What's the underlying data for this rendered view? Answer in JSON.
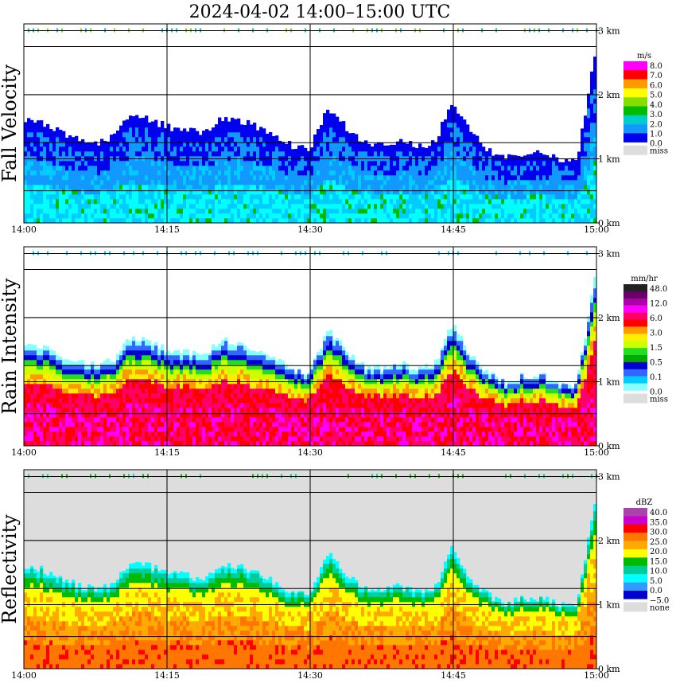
{
  "figure": {
    "title": "2024-04-02   14:00–15:00 UTC"
  },
  "chart_data": [
    {
      "type": "heatmap",
      "name": "Fall Velocity",
      "ylabel": "Fall Velocity",
      "xlim_minutes": [
        "14:00",
        "15:00"
      ],
      "x_ticks": [
        "14:00",
        "14:15",
        "14:30",
        "14:45",
        "15:00"
      ],
      "height_ticks": [
        "0 km",
        "1 km",
        "2 km",
        "3 km"
      ],
      "ylim_km": [
        0,
        3.2
      ],
      "grid": true,
      "colorbar": {
        "unit": "m/s",
        "labels": [
          "8.0",
          "7.0",
          "6.0",
          "5.0",
          "4.0",
          "3.0",
          "2.0",
          "1.0",
          "0.0",
          "miss"
        ],
        "colors": [
          "#ff00ff",
          "#ff0000",
          "#ff9900",
          "#ffff00",
          "#88dd00",
          "#00bb00",
          "#00cccc",
          "#1199ff",
          "#0000ee"
        ],
        "miss_color": "#dddddd"
      },
      "data_summary": {
        "echo_top_km": [
          1.6,
          1.55,
          1.4,
          1.3,
          1.25,
          1.35,
          1.7,
          1.6,
          1.5,
          1.45,
          1.4,
          1.65,
          1.6,
          1.5,
          1.35,
          1.2,
          1.15,
          1.8,
          1.5,
          1.25,
          1.2,
          1.3,
          1.2,
          1.25,
          1.9,
          1.4,
          1.15,
          1.0,
          1.1,
          1.1,
          1.0,
          0.95,
          2.6
        ],
        "typical_values": "0.0–3.0 m/s, higher near the ground"
      }
    },
    {
      "type": "heatmap",
      "name": "Rain Intensity",
      "ylabel": "Rain Intensity",
      "x_ticks": [
        "14:00",
        "14:15",
        "14:30",
        "14:45",
        "15:00"
      ],
      "height_ticks": [
        "0 km",
        "1 km",
        "2 km",
        "3 km"
      ],
      "ylim_km": [
        0,
        3.2
      ],
      "grid": true,
      "colorbar": {
        "unit": "mm/hr",
        "labels": [
          "48.0",
          "12.0",
          "6.0",
          "3.0",
          "1.5",
          "0.5",
          "0.1",
          "0.0",
          "miss"
        ],
        "colors": [
          "#222222",
          "#660066",
          "#aa00aa",
          "#ff00ff",
          "#ff0066",
          "#ff0000",
          "#ff9900",
          "#ffee00",
          "#ccff00",
          "#22dd22",
          "#00aa00",
          "#0000cc",
          "#3366ff",
          "#00ccff",
          "#88ffff"
        ],
        "miss_color": "#dddddd"
      },
      "data_summary": {
        "echo_top_km": [
          1.6,
          1.55,
          1.4,
          1.3,
          1.25,
          1.35,
          1.7,
          1.6,
          1.5,
          1.45,
          1.4,
          1.65,
          1.6,
          1.5,
          1.35,
          1.2,
          1.15,
          1.8,
          1.5,
          1.25,
          1.2,
          1.3,
          1.2,
          1.25,
          1.9,
          1.4,
          1.15,
          1.0,
          1.1,
          1.1,
          1.0,
          0.95,
          2.6
        ],
        "typical_values": "6.0–12.0 mm/hr below 1 km"
      }
    },
    {
      "type": "heatmap",
      "name": "Reflectivity",
      "ylabel": "Reflectivity",
      "x_ticks": [
        "14:00",
        "14:15",
        "14:30",
        "14:45",
        "15:00"
      ],
      "height_ticks": [
        "0 km",
        "1 km",
        "2 km",
        "3 km"
      ],
      "ylim_km": [
        0,
        3.2
      ],
      "grid": true,
      "colorbar": {
        "unit": "dBZ",
        "labels": [
          "40.0",
          "35.0",
          "30.0",
          "25.0",
          "20.0",
          "15.0",
          "10.0",
          "5.0",
          "0.0",
          "−5.0",
          "none"
        ],
        "colors": [
          "#aa44aa",
          "#cc00cc",
          "#ff0000",
          "#ff7700",
          "#ffaa00",
          "#ffff00",
          "#00bb00",
          "#00cc99",
          "#00ffff",
          "#3399ff",
          "#0000cc"
        ],
        "miss_color": "#dddddd"
      },
      "data_summary": {
        "echo_top_km": [
          1.6,
          1.55,
          1.4,
          1.3,
          1.25,
          1.35,
          1.7,
          1.6,
          1.5,
          1.45,
          1.4,
          1.65,
          1.6,
          1.5,
          1.35,
          1.2,
          1.15,
          1.8,
          1.5,
          1.25,
          1.2,
          1.3,
          1.2,
          1.25,
          1.9,
          1.4,
          1.15,
          1.0,
          1.1,
          1.1,
          1.0,
          0.95,
          2.6
        ],
        "typical_values": "20–30 dBZ below 1 km"
      }
    }
  ]
}
